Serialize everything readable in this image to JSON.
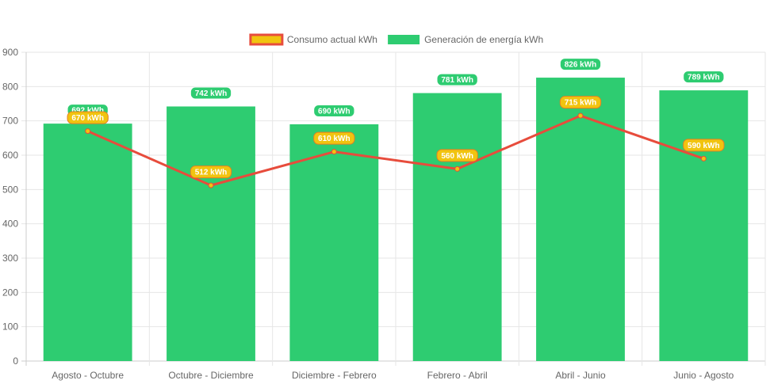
{
  "chart_data": {
    "type": "bar",
    "categories": [
      "Agosto - Octubre",
      "Octubre - Diciembre",
      "Diciembre - Febrero",
      "Febrero - Abril",
      "Abril - Junio",
      "Junio - Agosto"
    ],
    "series": [
      {
        "name": "Consumo actual kWh",
        "type": "line",
        "values": [
          670,
          512,
          610,
          560,
          715,
          590
        ],
        "labels": [
          "670 kWh",
          "512 kWh",
          "610 kWh",
          "560 kWh",
          "715 kWh",
          "590 kWh"
        ],
        "color": "#E74C3C",
        "fill": "#F1C40F"
      },
      {
        "name": "Generación de energía kWh",
        "type": "bar",
        "values": [
          692,
          742,
          690,
          781,
          826,
          789
        ],
        "labels": [
          "692 kWh",
          "742 kWh",
          "690 kWh",
          "781 kWh",
          "826 kWh",
          "789 kWh"
        ],
        "color": "#2ECC71"
      }
    ],
    "ylim": [
      0,
      900
    ],
    "yticks": [
      0,
      100,
      200,
      300,
      400,
      500,
      600,
      700,
      800,
      900
    ],
    "grid": true,
    "legend": "top-center"
  }
}
